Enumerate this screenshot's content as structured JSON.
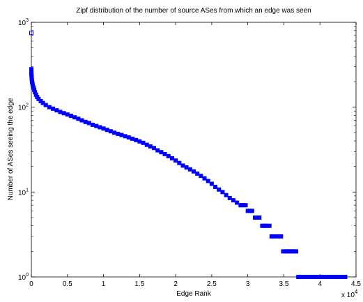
{
  "chart_data": {
    "type": "scatter",
    "title": "Zipf distribution of the number of source ASes from which an edge was seen",
    "xlabel": "Edge Rank",
    "ylabel": "Number of ASes seeing the edge",
    "x_multiplier_label": "x 10",
    "x_multiplier_exponent": "4",
    "xlim": [
      0,
      45000
    ],
    "ylim": [
      1,
      1000
    ],
    "yscale": "log",
    "grid": false,
    "legend": "none",
    "marker": "square",
    "marker_color": "#0000ff",
    "x_ticks": [
      0,
      5000,
      10000,
      15000,
      20000,
      25000,
      30000,
      35000,
      40000,
      45000
    ],
    "x_tick_labels": [
      "0",
      "0.5",
      "1",
      "1.5",
      "2",
      "2.5",
      "3",
      "3.5",
      "4",
      "4.5"
    ],
    "y_ticks": [
      1,
      10,
      100,
      1000
    ],
    "y_tick_base": "10",
    "y_tick_exponents": [
      "0",
      "1",
      "2",
      "3"
    ],
    "series": [
      {
        "x": [
          1,
          3,
          6,
          10,
          20,
          35,
          50,
          70,
          100,
          150,
          200,
          300,
          400,
          500,
          650,
          800,
          1000,
          1300,
          1600,
          2000,
          2500,
          3000,
          3500,
          4000,
          4500,
          5000,
          5500,
          6000,
          6500,
          7000,
          7500,
          8000,
          8500,
          9000,
          9500,
          10000,
          10500,
          11000,
          11500,
          12000,
          12500,
          13000,
          13500,
          14000,
          14500,
          15000,
          15500,
          16000,
          16500,
          17000,
          17500,
          18000,
          18500,
          19000,
          19500,
          20000,
          20500,
          21000,
          21500,
          22000,
          22500,
          23000,
          23500,
          24000,
          24500,
          25000,
          25500,
          26000,
          26500,
          27000,
          27500,
          28000,
          28500,
          29000,
          29300,
          29700,
          30000,
          30300,
          30600,
          31000,
          31300,
          31600,
          32000,
          32300,
          32600,
          33000,
          33300,
          33600,
          33900,
          34300,
          34600,
          34900,
          35200,
          35500,
          35800,
          36100,
          36400,
          36700,
          37000,
          37500,
          38000,
          38500,
          39000,
          39500,
          40000,
          40500,
          41000,
          41500,
          42000,
          42500,
          43000,
          43500
        ],
        "y": [
          750,
          280,
          260,
          250,
          240,
          230,
          220,
          210,
          200,
          190,
          180,
          170,
          160,
          150,
          140,
          132,
          125,
          118,
          112,
          106,
          100,
          96,
          92,
          88,
          85,
          82,
          79,
          76,
          73,
          70,
          67,
          65,
          62,
          60,
          58,
          56,
          54,
          52,
          50,
          48.5,
          47,
          45.5,
          44,
          42.5,
          41,
          39.5,
          38,
          36,
          34.5,
          33,
          31,
          29.5,
          28,
          26.5,
          25,
          23.5,
          22,
          20.5,
          19.5,
          18.5,
          17.5,
          16.5,
          15.5,
          14.5,
          13.5,
          12.5,
          11.5,
          10.7,
          10,
          9.2,
          8.5,
          8,
          7.5,
          7,
          7,
          7,
          6,
          6,
          6,
          5,
          5,
          5,
          4,
          4,
          4,
          4,
          3,
          3,
          3,
          3,
          3,
          2,
          2,
          2,
          2,
          2,
          2,
          2,
          1,
          1,
          1,
          1,
          1,
          1,
          1,
          1,
          1,
          1,
          1,
          1,
          1,
          1
        ]
      }
    ]
  }
}
